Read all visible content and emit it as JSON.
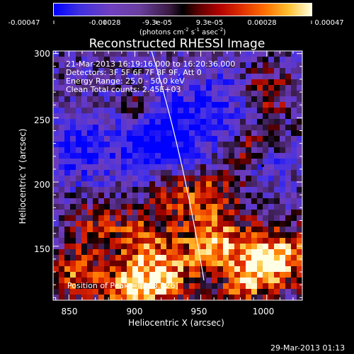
{
  "colorbar": {
    "ticks": [
      "-0.00047",
      "-0.00028",
      "-9.3e-05",
      "9.3e-05",
      "0.00028",
      "0.00047"
    ],
    "units_main": "(photons cm",
    "units_sup1": "-2",
    "units_mid1": " s",
    "units_sup2": "-1",
    "units_mid2": " asec",
    "units_sup3": "-2",
    "units_end": ")"
  },
  "plot": {
    "title": "Reconstructed RHESSI Image",
    "xlabel": "Heliocentric X (arcsec)",
    "ylabel": "Heliocentric Y (arcsec)",
    "xticks": [
      "850",
      "900",
      "950",
      "1000"
    ],
    "yticks": [
      "300",
      "250",
      "200",
      "150"
    ],
    "xlim": [
      838,
      1027
    ],
    "ylim": [
      108,
      302
    ]
  },
  "annotation": {
    "line1": "21-Mar-2013 16:19:16.000 to 16:20:36.000",
    "line2": "Detectors: 3F 5F 6F 7F 8F 9F, Att 0",
    "line3": "Energy Range: 25.0 - 50.0 keV",
    "line4": "Clean     Total counts: 2.45E+03",
    "peak": "Position of Peak = [883,126]"
  },
  "footer": {
    "timestamp": "29-Mar-2013 01:13"
  },
  "colors": {
    "background": "#000000",
    "axis": "#ffffff",
    "limb": "#ffffff"
  }
}
